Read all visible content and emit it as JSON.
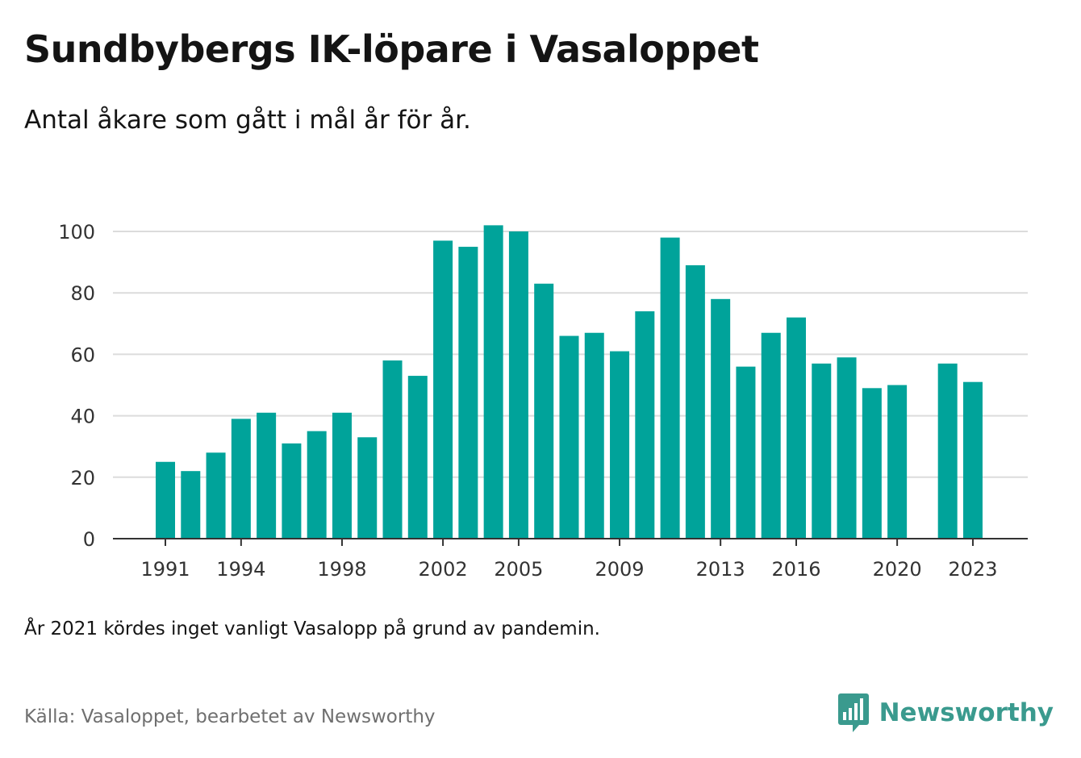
{
  "title": "Sundbybergs IK-löpare i Vasaloppet",
  "subtitle": "Antal åkare som gått i mål år för år.",
  "note": "År 2021 kördes inget vanligt Vasalopp på grund av pandemin.",
  "source": "Källa: Vasaloppet, bearbetet av Newsworthy",
  "brand": {
    "name": "Newsworthy",
    "icon": "newsworthy-logo-icon",
    "color": "#3a9a8e"
  },
  "chart_data": {
    "type": "bar",
    "title": "Sundbybergs IK-löpare i Vasaloppet",
    "subtitle": "Antal åkare som gått i mål år för år.",
    "xlabel": "",
    "ylabel": "",
    "ylim": [
      0,
      100
    ],
    "yticks": [
      0,
      20,
      40,
      60,
      80,
      100
    ],
    "xtick_labels": [
      "1991",
      "1994",
      "1998",
      "2002",
      "2005",
      "2009",
      "2013",
      "2016",
      "2020",
      "2023"
    ],
    "grid": true,
    "bar_color": "#00a39a",
    "categories": [
      1991,
      1992,
      1993,
      1994,
      1995,
      1996,
      1997,
      1998,
      1999,
      2000,
      2001,
      2002,
      2003,
      2004,
      2005,
      2006,
      2007,
      2008,
      2009,
      2010,
      2011,
      2012,
      2013,
      2014,
      2015,
      2016,
      2017,
      2018,
      2019,
      2020,
      2021,
      2022,
      2023
    ],
    "values": [
      25,
      22,
      28,
      39,
      41,
      31,
      35,
      41,
      33,
      58,
      53,
      97,
      95,
      102,
      100,
      83,
      66,
      67,
      61,
      74,
      98,
      89,
      78,
      56,
      67,
      72,
      57,
      59,
      49,
      50,
      null,
      57,
      51
    ]
  }
}
